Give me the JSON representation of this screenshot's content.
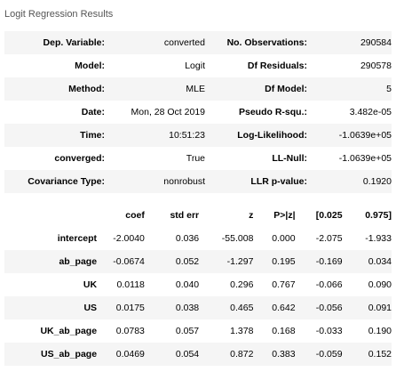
{
  "caption": "Logit Regression Results",
  "summary": [
    [
      "Dep. Variable:",
      "converted",
      "No. Observations:",
      "290584"
    ],
    [
      "Model:",
      "Logit",
      "Df Residuals:",
      "290578"
    ],
    [
      "Method:",
      "MLE",
      "Df Model:",
      "5"
    ],
    [
      "Date:",
      "Mon, 28 Oct 2019",
      "Pseudo R-squ.:",
      "3.482e-05"
    ],
    [
      "Time:",
      "10:51:23",
      "Log-Likelihood:",
      "-1.0639e+05"
    ],
    [
      "converged:",
      "True",
      "LL-Null:",
      "-1.0639e+05"
    ],
    [
      "Covariance Type:",
      "nonrobust",
      "LLR p-value:",
      "0.1920"
    ]
  ],
  "coef_header": [
    "",
    "coef",
    "std err",
    "z",
    "P>|z|",
    "[0.025",
    "0.975]"
  ],
  "coef_rows": [
    [
      "intercept",
      "-2.0040",
      "0.036",
      "-55.008",
      "0.000",
      "-2.075",
      "-1.933"
    ],
    [
      "ab_page",
      "-0.0674",
      "0.052",
      "-1.297",
      "0.195",
      "-0.169",
      "0.034"
    ],
    [
      "UK",
      "0.0118",
      "0.040",
      "0.296",
      "0.767",
      "-0.066",
      "0.090"
    ],
    [
      "US",
      "0.0175",
      "0.038",
      "0.465",
      "0.642",
      "-0.056",
      "0.091"
    ],
    [
      "UK_ab_page",
      "0.0783",
      "0.057",
      "1.378",
      "0.168",
      "-0.033",
      "0.190"
    ],
    [
      "US_ab_page",
      "0.0469",
      "0.054",
      "0.872",
      "0.383",
      "-0.059",
      "0.152"
    ]
  ]
}
